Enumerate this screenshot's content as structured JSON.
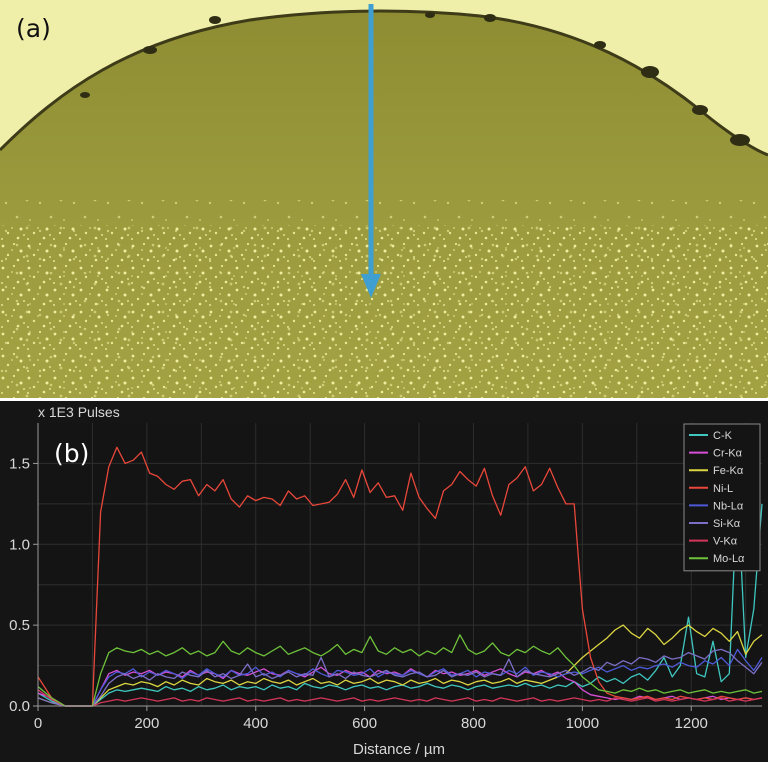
{
  "panel_a": {
    "label": "(a)",
    "image_description_colors": {
      "matrix": "#98973a",
      "precipitates": "#eceb98",
      "background": "#efefaa",
      "arrow": "#3f9fd1"
    }
  },
  "panel_b": {
    "label": "(b)"
  },
  "chart_data": {
    "type": "line",
    "title": "",
    "xlabel": "Distance / µm",
    "ylabel": "x 1E3 Pulses",
    "xlim": [
      0,
      1330
    ],
    "ylim": [
      0,
      1.75
    ],
    "x_ticks": [
      0,
      200,
      400,
      600,
      800,
      1000,
      1200
    ],
    "y_ticks": [
      0.0,
      0.5,
      1.0,
      1.5
    ],
    "x_tick_labels": [
      "0",
      "200",
      "400",
      "600",
      "800",
      "1000",
      "1200"
    ],
    "y_tick_labels": [
      "0.0",
      "0.5",
      "1.0",
      "1.5"
    ],
    "grid": true,
    "legend_position": "top-right",
    "x": [
      0,
      25,
      50,
      75,
      100,
      115,
      130,
      145,
      160,
      175,
      190,
      205,
      220,
      235,
      250,
      265,
      280,
      295,
      310,
      325,
      340,
      355,
      370,
      385,
      400,
      415,
      430,
      445,
      460,
      475,
      490,
      505,
      520,
      535,
      550,
      565,
      580,
      595,
      610,
      625,
      640,
      655,
      670,
      685,
      700,
      715,
      730,
      745,
      760,
      775,
      790,
      805,
      820,
      835,
      850,
      865,
      880,
      895,
      910,
      925,
      940,
      955,
      970,
      985,
      1000,
      1015,
      1030,
      1045,
      1060,
      1075,
      1090,
      1105,
      1120,
      1135,
      1150,
      1165,
      1180,
      1195,
      1210,
      1225,
      1240,
      1255,
      1270,
      1285,
      1300,
      1315,
      1330
    ],
    "series": [
      {
        "name": "C-K",
        "color": "#3fc7c0",
        "values": [
          0.08,
          0.03,
          0.0,
          0.0,
          0.0,
          0.04,
          0.08,
          0.1,
          0.09,
          0.1,
          0.11,
          0.1,
          0.09,
          0.12,
          0.1,
          0.11,
          0.09,
          0.12,
          0.1,
          0.11,
          0.13,
          0.1,
          0.12,
          0.11,
          0.12,
          0.1,
          0.13,
          0.11,
          0.12,
          0.1,
          0.14,
          0.12,
          0.11,
          0.13,
          0.12,
          0.1,
          0.12,
          0.13,
          0.11,
          0.12,
          0.1,
          0.12,
          0.13,
          0.11,
          0.12,
          0.14,
          0.12,
          0.11,
          0.13,
          0.12,
          0.1,
          0.12,
          0.13,
          0.11,
          0.12,
          0.13,
          0.12,
          0.14,
          0.12,
          0.13,
          0.11,
          0.13,
          0.12,
          0.15,
          0.12,
          0.14,
          0.18,
          0.15,
          0.17,
          0.14,
          0.18,
          0.2,
          0.16,
          0.22,
          0.3,
          0.18,
          0.25,
          0.55,
          0.2,
          0.18,
          0.4,
          0.15,
          0.2,
          1.35,
          0.3,
          0.6,
          1.25
        ]
      },
      {
        "name": "Cr-Kα",
        "color": "#d64fd6",
        "values": [
          0.08,
          0.05,
          0.0,
          0.0,
          0.0,
          0.1,
          0.2,
          0.22,
          0.19,
          0.21,
          0.2,
          0.22,
          0.19,
          0.21,
          0.2,
          0.18,
          0.22,
          0.19,
          0.21,
          0.2,
          0.17,
          0.22,
          0.2,
          0.19,
          0.21,
          0.23,
          0.2,
          0.19,
          0.22,
          0.2,
          0.18,
          0.21,
          0.24,
          0.2,
          0.19,
          0.22,
          0.2,
          0.21,
          0.18,
          0.22,
          0.2,
          0.21,
          0.19,
          0.23,
          0.2,
          0.18,
          0.22,
          0.2,
          0.21,
          0.19,
          0.2,
          0.22,
          0.19,
          0.21,
          0.23,
          0.2,
          0.18,
          0.21,
          0.2,
          0.22,
          0.19,
          0.21,
          0.17,
          0.15,
          0.1,
          0.07,
          0.06,
          0.05,
          0.04,
          0.05,
          0.04,
          0.06,
          0.05,
          0.04,
          0.05,
          0.06,
          0.04,
          0.05,
          0.04,
          0.05,
          0.06,
          0.04,
          0.05,
          0.04,
          0.05,
          0.04,
          0.05
        ]
      },
      {
        "name": "Fe-Kα",
        "color": "#dcd642",
        "values": [
          0.05,
          0.02,
          0.0,
          0.0,
          0.0,
          0.05,
          0.1,
          0.12,
          0.14,
          0.13,
          0.15,
          0.14,
          0.12,
          0.15,
          0.13,
          0.16,
          0.14,
          0.13,
          0.17,
          0.15,
          0.14,
          0.16,
          0.13,
          0.15,
          0.14,
          0.17,
          0.15,
          0.14,
          0.16,
          0.13,
          0.15,
          0.17,
          0.14,
          0.15,
          0.13,
          0.16,
          0.14,
          0.15,
          0.17,
          0.14,
          0.16,
          0.15,
          0.13,
          0.16,
          0.14,
          0.15,
          0.17,
          0.14,
          0.16,
          0.15,
          0.13,
          0.15,
          0.16,
          0.14,
          0.15,
          0.17,
          0.14,
          0.16,
          0.15,
          0.14,
          0.16,
          0.18,
          0.2,
          0.25,
          0.3,
          0.34,
          0.38,
          0.42,
          0.47,
          0.5,
          0.45,
          0.42,
          0.48,
          0.44,
          0.38,
          0.42,
          0.47,
          0.5,
          0.46,
          0.43,
          0.48,
          0.45,
          0.4,
          0.46,
          0.32,
          0.4,
          0.44
        ]
      },
      {
        "name": "Ni-L",
        "color": "#e8473a",
        "values": [
          0.18,
          0.05,
          0.0,
          0.0,
          0.0,
          1.2,
          1.48,
          1.6,
          1.5,
          1.52,
          1.57,
          1.44,
          1.42,
          1.37,
          1.34,
          1.39,
          1.4,
          1.3,
          1.37,
          1.33,
          1.4,
          1.28,
          1.23,
          1.3,
          1.27,
          1.29,
          1.28,
          1.24,
          1.33,
          1.28,
          1.3,
          1.24,
          1.25,
          1.26,
          1.31,
          1.4,
          1.29,
          1.46,
          1.32,
          1.38,
          1.29,
          1.3,
          1.21,
          1.44,
          1.29,
          1.22,
          1.16,
          1.33,
          1.37,
          1.45,
          1.4,
          1.36,
          1.47,
          1.3,
          1.18,
          1.37,
          1.41,
          1.48,
          1.33,
          1.37,
          1.47,
          1.35,
          1.25,
          1.25,
          0.6,
          0.3,
          0.15,
          0.08,
          0.06,
          0.05,
          0.04,
          0.05,
          0.06,
          0.04,
          0.05,
          0.04,
          0.06,
          0.05,
          0.04,
          0.05,
          0.04,
          0.06,
          0.05,
          0.04,
          0.05,
          0.04,
          0.05
        ]
      },
      {
        "name": "Nb-Lα",
        "color": "#4d5ad8",
        "values": [
          0.1,
          0.04,
          0.0,
          0.0,
          0.0,
          0.1,
          0.18,
          0.21,
          0.2,
          0.23,
          0.18,
          0.21,
          0.19,
          0.22,
          0.2,
          0.17,
          0.21,
          0.19,
          0.23,
          0.2,
          0.18,
          0.22,
          0.19,
          0.2,
          0.24,
          0.19,
          0.21,
          0.18,
          0.22,
          0.2,
          0.19,
          0.23,
          0.2,
          0.18,
          0.22,
          0.21,
          0.19,
          0.2,
          0.23,
          0.18,
          0.21,
          0.2,
          0.19,
          0.22,
          0.2,
          0.18,
          0.21,
          0.23,
          0.19,
          0.2,
          0.22,
          0.18,
          0.21,
          0.2,
          0.19,
          0.22,
          0.2,
          0.24,
          0.19,
          0.21,
          0.2,
          0.18,
          0.2,
          0.21,
          0.2,
          0.22,
          0.24,
          0.21,
          0.23,
          0.25,
          0.22,
          0.24,
          0.23,
          0.25,
          0.26,
          0.24,
          0.27,
          0.25,
          0.24,
          0.28,
          0.26,
          0.3,
          0.25,
          0.35,
          0.28,
          0.22,
          0.3
        ]
      },
      {
        "name": "Si-Kα",
        "color": "#7c6fc7",
        "values": [
          0.05,
          0.02,
          0.0,
          0.0,
          0.0,
          0.06,
          0.14,
          0.18,
          0.2,
          0.17,
          0.19,
          0.16,
          0.2,
          0.18,
          0.17,
          0.21,
          0.19,
          0.18,
          0.22,
          0.18,
          0.2,
          0.17,
          0.19,
          0.26,
          0.18,
          0.2,
          0.17,
          0.19,
          0.21,
          0.18,
          0.2,
          0.19,
          0.3,
          0.18,
          0.2,
          0.17,
          0.21,
          0.19,
          0.18,
          0.2,
          0.22,
          0.19,
          0.18,
          0.2,
          0.21,
          0.18,
          0.19,
          0.22,
          0.18,
          0.2,
          0.19,
          0.21,
          0.18,
          0.2,
          0.19,
          0.29,
          0.18,
          0.22,
          0.2,
          0.19,
          0.18,
          0.2,
          0.22,
          0.19,
          0.21,
          0.24,
          0.22,
          0.27,
          0.25,
          0.28,
          0.26,
          0.3,
          0.29,
          0.27,
          0.31,
          0.29,
          0.3,
          0.33,
          0.31,
          0.29,
          0.34,
          0.35,
          0.33,
          0.28,
          0.24,
          0.2,
          0.27
        ]
      },
      {
        "name": "V-Kα",
        "color": "#d4365a",
        "values": [
          0.1,
          0.04,
          0.0,
          0.0,
          0.0,
          0.02,
          0.03,
          0.04,
          0.03,
          0.04,
          0.05,
          0.04,
          0.03,
          0.04,
          0.05,
          0.03,
          0.04,
          0.03,
          0.05,
          0.04,
          0.03,
          0.04,
          0.05,
          0.03,
          0.04,
          0.03,
          0.04,
          0.05,
          0.03,
          0.04,
          0.03,
          0.04,
          0.05,
          0.04,
          0.03,
          0.04,
          0.05,
          0.03,
          0.04,
          0.03,
          0.04,
          0.05,
          0.04,
          0.03,
          0.04,
          0.03,
          0.05,
          0.04,
          0.03,
          0.04,
          0.05,
          0.03,
          0.04,
          0.03,
          0.05,
          0.04,
          0.03,
          0.04,
          0.05,
          0.03,
          0.04,
          0.03,
          0.04,
          0.05,
          0.04,
          0.03,
          0.04,
          0.03,
          0.05,
          0.04,
          0.03,
          0.04,
          0.05,
          0.03,
          0.04,
          0.03,
          0.04,
          0.05,
          0.04,
          0.03,
          0.04,
          0.05,
          0.03,
          0.04,
          0.03,
          0.04,
          0.05
        ]
      },
      {
        "name": "Mo-Lα",
        "color": "#6ec23a",
        "values": [
          0.12,
          0.05,
          0.0,
          0.0,
          0.0,
          0.2,
          0.33,
          0.36,
          0.34,
          0.33,
          0.35,
          0.32,
          0.34,
          0.31,
          0.33,
          0.36,
          0.32,
          0.34,
          0.31,
          0.33,
          0.4,
          0.34,
          0.32,
          0.36,
          0.33,
          0.31,
          0.34,
          0.37,
          0.32,
          0.34,
          0.36,
          0.33,
          0.31,
          0.34,
          0.38,
          0.32,
          0.35,
          0.33,
          0.43,
          0.34,
          0.32,
          0.36,
          0.33,
          0.35,
          0.31,
          0.34,
          0.32,
          0.36,
          0.33,
          0.44,
          0.35,
          0.32,
          0.34,
          0.39,
          0.33,
          0.31,
          0.35,
          0.33,
          0.37,
          0.34,
          0.32,
          0.36,
          0.3,
          0.25,
          0.18,
          0.14,
          0.1,
          0.09,
          0.08,
          0.1,
          0.09,
          0.11,
          0.09,
          0.1,
          0.08,
          0.09,
          0.1,
          0.08,
          0.09,
          0.1,
          0.08,
          0.09,
          0.08,
          0.09,
          0.1,
          0.08,
          0.09
        ]
      }
    ]
  }
}
